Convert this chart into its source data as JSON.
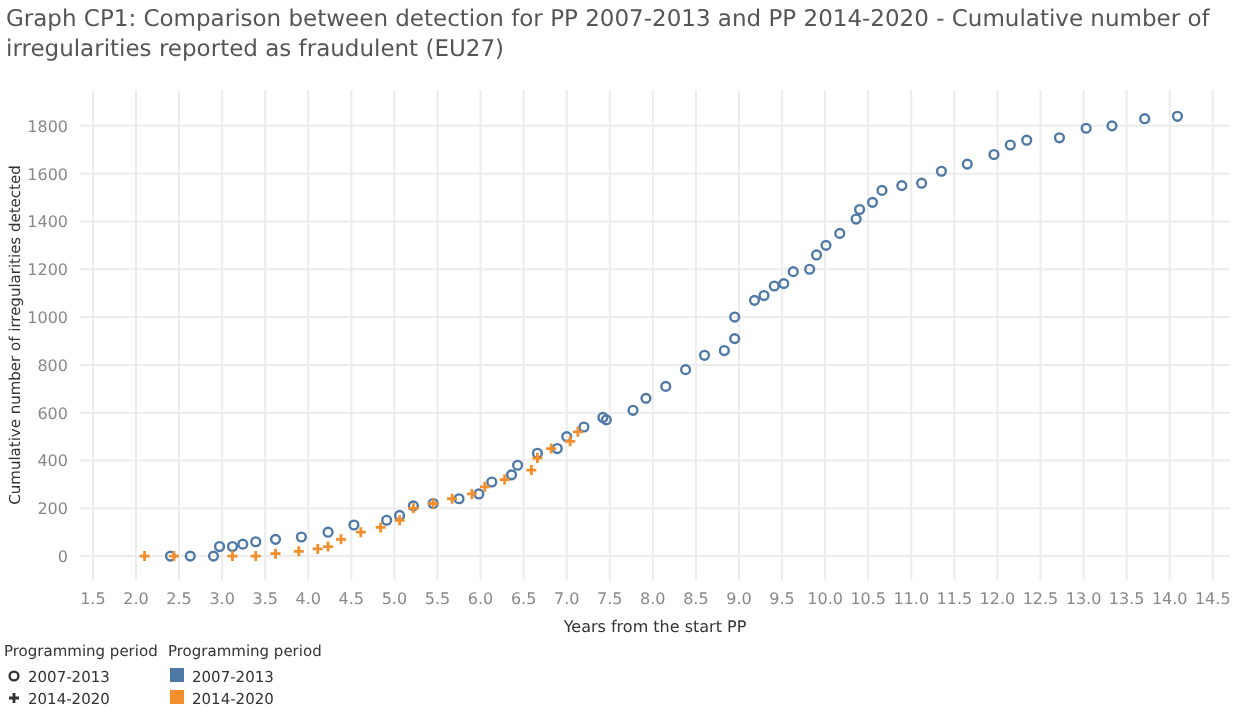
{
  "chart_data": {
    "type": "scatter",
    "title": "Graph CP1: Comparison between detection for PP 2007-2013 and PP 2014-2020 - Cumulative number of irregularities reported as fraudulent (EU27)",
    "xlabel": "Years from the start PP",
    "ylabel": "Cumulative number of irregularities detected",
    "legend_title": "Programming period",
    "legend": "bottom left",
    "grid": true,
    "xlim": [
      1.35,
      14.7
    ],
    "ylim": [
      -100,
      1950
    ],
    "xticks": [
      {
        "value": 1.5,
        "label": "1.5"
      },
      {
        "value": 2,
        "label": "2.0"
      },
      {
        "value": 2.5,
        "label": "2.5"
      },
      {
        "value": 3,
        "label": "3.0"
      },
      {
        "value": 3.5,
        "label": "3.5"
      },
      {
        "value": 4,
        "label": "4.0"
      },
      {
        "value": 4.5,
        "label": "4.5"
      },
      {
        "value": 5,
        "label": "5.0"
      },
      {
        "value": 5.5,
        "label": "5.5"
      },
      {
        "value": 6,
        "label": "6.0"
      },
      {
        "value": 6.5,
        "label": "6.5"
      },
      {
        "value": 7,
        "label": "7.0"
      },
      {
        "value": 7.5,
        "label": "7.5"
      },
      {
        "value": 8,
        "label": "8.0"
      },
      {
        "value": 8.5,
        "label": "8.5"
      },
      {
        "value": 9,
        "label": "9.0"
      },
      {
        "value": 9.5,
        "label": "9.5"
      },
      {
        "value": 10,
        "label": "10.0"
      },
      {
        "value": 10.5,
        "label": "10.5"
      },
      {
        "value": 11,
        "label": "11.0"
      },
      {
        "value": 11.5,
        "label": "11.5"
      },
      {
        "value": 12,
        "label": "12.0"
      },
      {
        "value": 12.5,
        "label": "12.5"
      },
      {
        "value": 13,
        "label": "13.0"
      },
      {
        "value": 13.5,
        "label": "13.5"
      },
      {
        "value": 14,
        "label": "14.0"
      },
      {
        "value": 14.5,
        "label": "14.5"
      }
    ],
    "yticks": [
      0,
      200,
      400,
      600,
      800,
      1000,
      1200,
      1400,
      1600,
      1800
    ],
    "series": [
      {
        "name": "2007-2013",
        "color": "#4e79a7",
        "marker": "circle",
        "x": [
          2.4,
          2.63,
          2.9,
          2.97,
          3.12,
          3.24,
          3.39,
          3.62,
          3.92,
          4.23,
          4.53,
          4.91,
          5.06,
          5.22,
          5.45,
          5.75,
          5.98,
          6.13,
          6.36,
          6.43,
          6.66,
          6.89,
          7.0,
          7.2,
          7.42,
          7.46,
          7.77,
          7.92,
          8.15,
          8.38,
          8.6,
          8.83,
          8.95,
          8.95,
          9.18,
          9.29,
          9.41,
          9.52,
          9.63,
          9.82,
          9.9,
          10.01,
          10.17,
          10.36,
          10.4,
          10.55,
          10.66,
          10.89,
          11.12,
          11.35,
          11.65,
          11.96,
          12.15,
          12.34,
          12.72,
          13.03,
          13.33,
          13.71,
          14.09
        ],
        "values": [
          0,
          0,
          0,
          40,
          40,
          50,
          60,
          70,
          80,
          100,
          130,
          150,
          170,
          210,
          220,
          240,
          260,
          310,
          340,
          380,
          430,
          450,
          500,
          540,
          580,
          570,
          610,
          660,
          710,
          780,
          840,
          860,
          910,
          1000,
          1070,
          1090,
          1130,
          1140,
          1190,
          1200,
          1260,
          1300,
          1350,
          1410,
          1450,
          1480,
          1530,
          1550,
          1560,
          1610,
          1640,
          1680,
          1720,
          1740,
          1750,
          1790,
          1800,
          1830,
          1840
        ]
      },
      {
        "name": "2014-2020",
        "color": "#f28e2b",
        "marker": "cross",
        "x": [
          2.1,
          2.44,
          3.12,
          3.39,
          3.62,
          3.89,
          4.11,
          4.23,
          4.38,
          4.61,
          4.84,
          5.06,
          5.22,
          5.45,
          5.67,
          5.9,
          6.05,
          6.28,
          6.59,
          6.66,
          6.82,
          7.04,
          7.13
        ],
        "values": [
          0,
          0,
          0,
          0,
          10,
          20,
          30,
          40,
          70,
          100,
          120,
          150,
          200,
          220,
          240,
          260,
          290,
          320,
          360,
          410,
          450,
          480,
          520
        ]
      }
    ]
  }
}
